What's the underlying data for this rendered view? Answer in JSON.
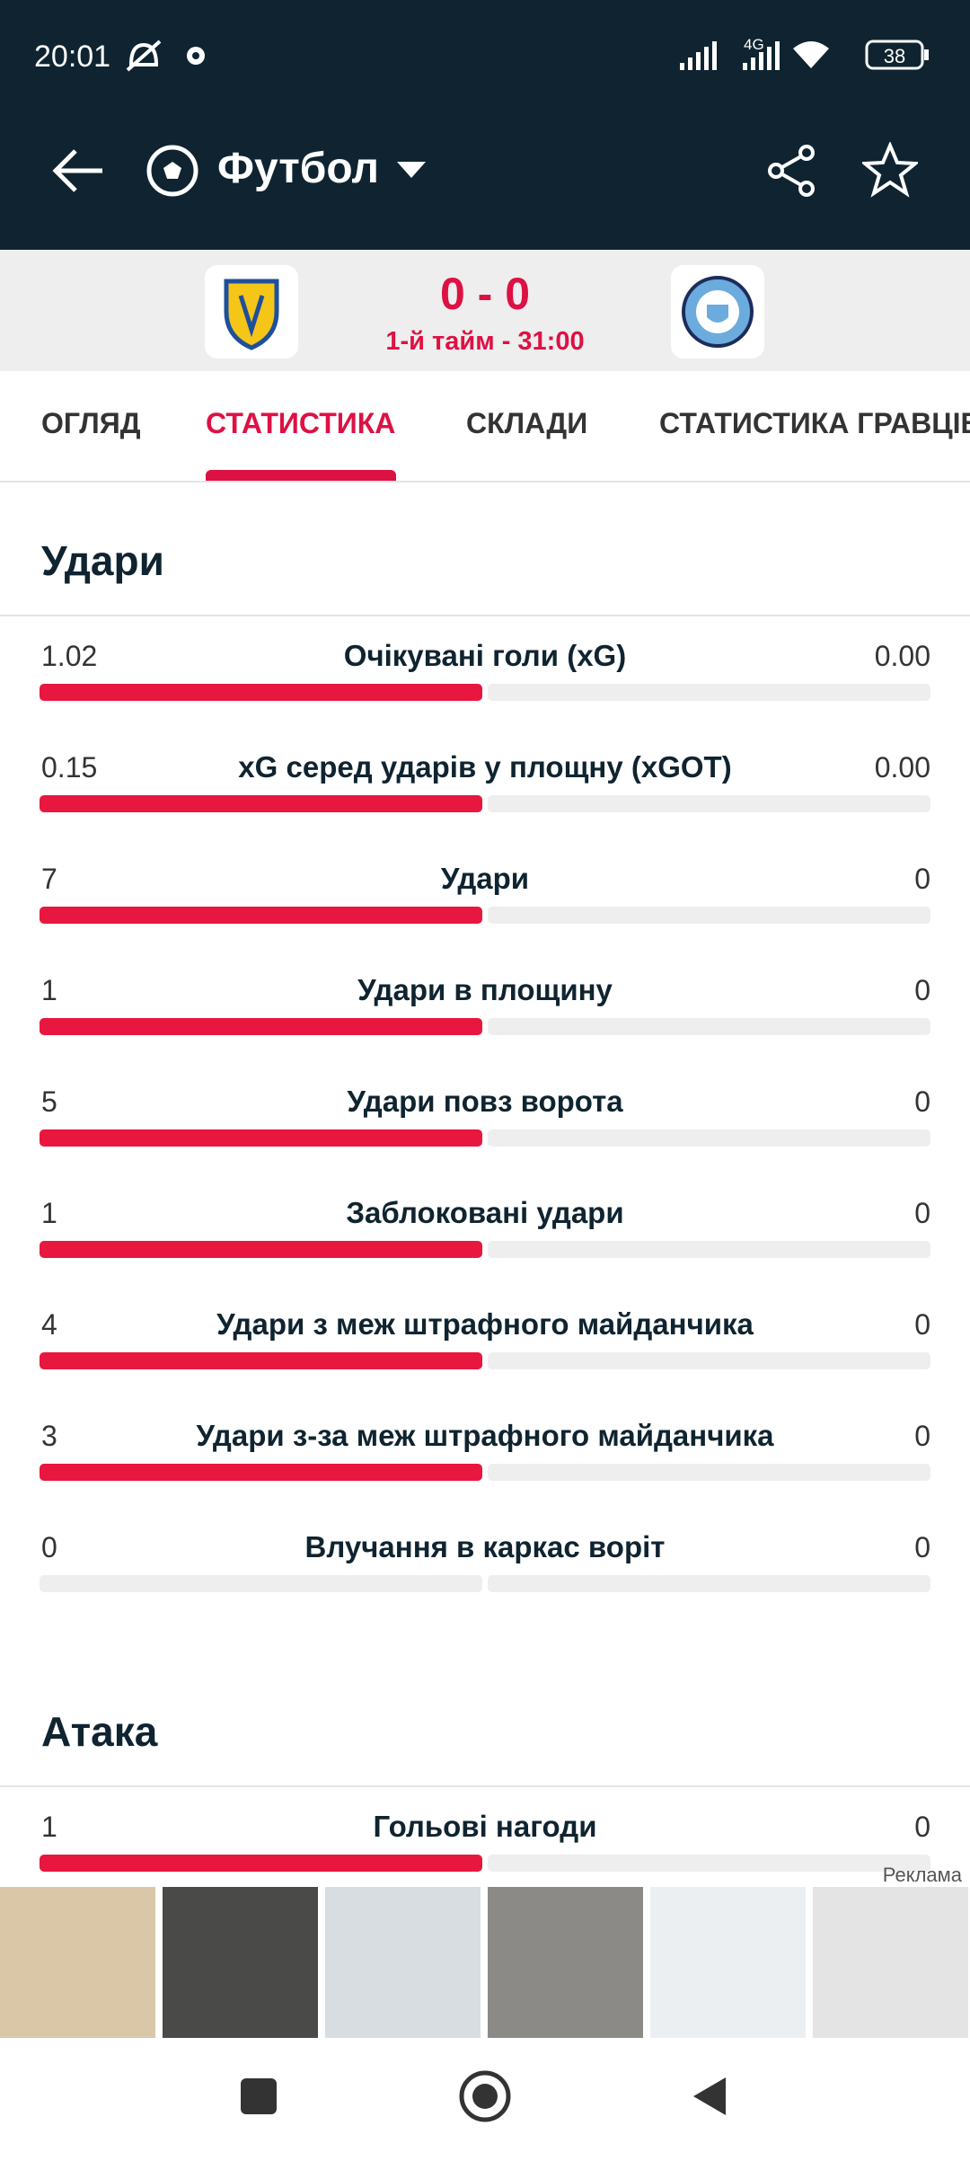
{
  "status_bar": {
    "time": "20:01",
    "network": "4G",
    "battery": "38"
  },
  "toolbar": {
    "title": "Футбол"
  },
  "match": {
    "score": "0 - 0",
    "status": "1-й тайм - 31:00"
  },
  "tabs": [
    "ОГЛЯД",
    "СТАТИСТИКА",
    "СКЛАДИ",
    "СТАТИСТИКА ГРАВЦІВ"
  ],
  "active_tab": 1,
  "sections": [
    {
      "title": "Удари",
      "rows": [
        {
          "label": "Очікувані голи (xG)",
          "home": "1.02",
          "away": "0.00"
        },
        {
          "label": "xG серед ударів у площну (xGOT)",
          "home": "0.15",
          "away": "0.00"
        },
        {
          "label": "Удари",
          "home": "7",
          "away": "0"
        },
        {
          "label": "Удари в площину",
          "home": "1",
          "away": "0"
        },
        {
          "label": "Удари повз ворота",
          "home": "5",
          "away": "0"
        },
        {
          "label": "Заблоковані удари",
          "home": "1",
          "away": "0"
        },
        {
          "label": "Удари з меж штрафного майданчика",
          "home": "4",
          "away": "0"
        },
        {
          "label": "Удари з-за меж штрафного майданчика",
          "home": "3",
          "away": "0"
        },
        {
          "label": "Влучання в каркас воріт",
          "home": "0",
          "away": "0"
        }
      ]
    },
    {
      "title": "Атака",
      "rows": [
        {
          "label": "Гольові нагоди",
          "home": "1",
          "away": "0"
        }
      ]
    }
  ],
  "ad": {
    "label": "Реклама"
  }
}
